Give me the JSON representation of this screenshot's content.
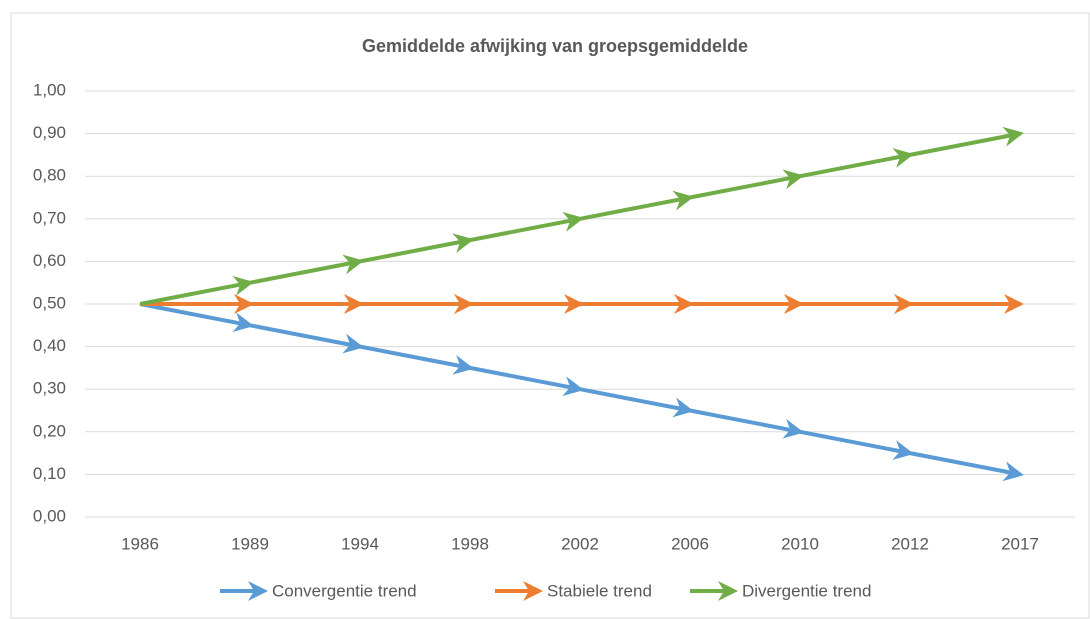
{
  "chart_data": {
    "type": "line",
    "title": "Gemiddelde afwijking van groepsgemiddelde",
    "categories": [
      "1986",
      "1989",
      "1994",
      "1998",
      "2002",
      "2006",
      "2010",
      "2012",
      "2017"
    ],
    "series": [
      {
        "name": "Convergentie trend",
        "color": "#5b9bd5",
        "values": [
          0.5,
          0.45,
          0.4,
          0.35,
          0.3,
          0.25,
          0.2,
          0.15,
          0.1
        ]
      },
      {
        "name": "Stabiele trend",
        "color": "#ed7d31",
        "values": [
          0.5,
          0.5,
          0.5,
          0.5,
          0.5,
          0.5,
          0.5,
          0.5,
          0.5
        ]
      },
      {
        "name": "Divergentie trend",
        "color": "#70ad47",
        "values": [
          0.5,
          0.55,
          0.6,
          0.65,
          0.7,
          0.75,
          0.8,
          0.85,
          0.9
        ]
      }
    ],
    "ylim": [
      0,
      1
    ],
    "yticks": [
      {
        "value": 0,
        "label": "0,00"
      },
      {
        "value": 0.1,
        "label": "0,10"
      },
      {
        "value": 0.2,
        "label": "0,20"
      },
      {
        "value": 0.3,
        "label": "0,30"
      },
      {
        "value": 0.4,
        "label": "0,40"
      },
      {
        "value": 0.5,
        "label": "0,50"
      },
      {
        "value": 0.6,
        "label": "0,60"
      },
      {
        "value": 0.7,
        "label": "0,70"
      },
      {
        "value": 0.8,
        "label": "0,80"
      },
      {
        "value": 0.9,
        "label": "0,90"
      },
      {
        "value": 1,
        "label": "1,00"
      }
    ],
    "grid": true,
    "legend": "bottom"
  }
}
